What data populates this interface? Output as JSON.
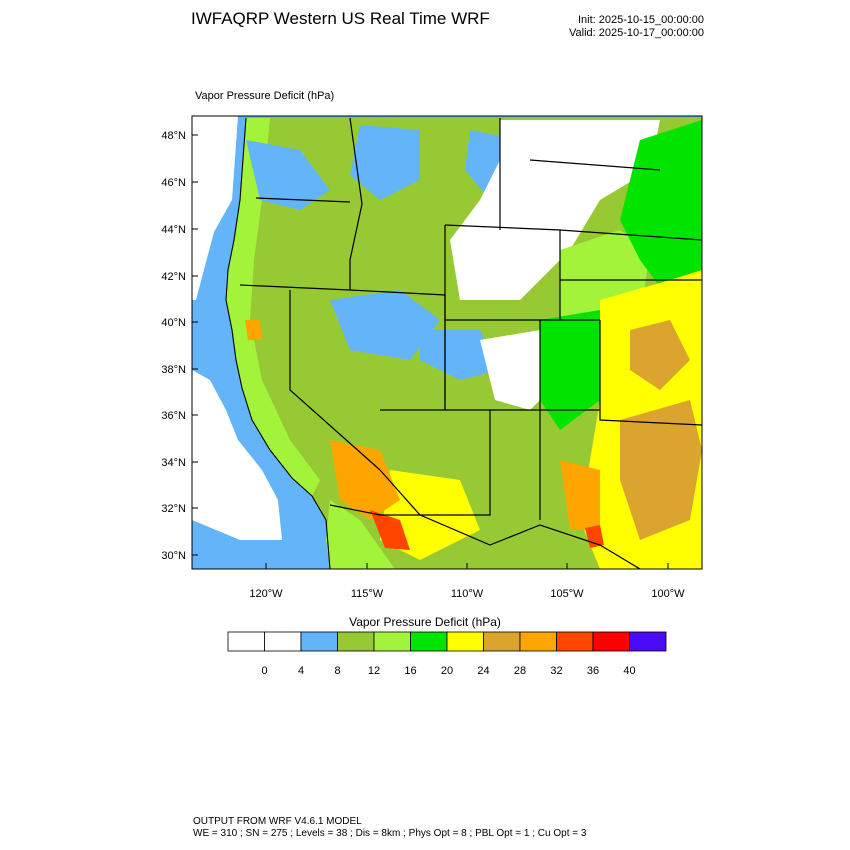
{
  "header": {
    "title": "IWFAQRP Western US Real Time WRF",
    "init": "Init: 2025-10-15_00:00:00",
    "valid": "Valid: 2025-10-17_00:00:00"
  },
  "field_label": "Vapor Pressure Deficit   (hPa)",
  "axes": {
    "lat_ticks": [
      "48°N",
      "46°N",
      "44°N",
      "42°N",
      "40°N",
      "38°N",
      "36°N",
      "34°N",
      "32°N",
      "30°N"
    ],
    "lon_ticks": [
      "120°W",
      "115°W",
      "110°W",
      "105°W",
      "100°W"
    ]
  },
  "colorbar": {
    "title": "Vapor Pressure Deficit  (hPa)",
    "labels": [
      "0",
      "4",
      "8",
      "12",
      "16",
      "20",
      "24",
      "28",
      "32",
      "36",
      "40"
    ],
    "colors": [
      "#ffffff",
      "#ffffff",
      "#63b4f9",
      "#97c934",
      "#a3f33a",
      "#00e400",
      "#ffff00",
      "#dba42e",
      "#ffa500",
      "#ff4500",
      "#ff0000",
      "#4b0bf7"
    ]
  },
  "footer": {
    "line1": "OUTPUT FROM WRF V4.6.1 MODEL",
    "line2": "WE = 310 ; SN = 275 ; Levels = 38 ; Dis = 8km ; Phys Opt = 8 ; PBL Opt = 1 ; Cu Opt = 3"
  },
  "legend_colors": {
    "ocean": "#63b4f9",
    "borders": "#000000"
  }
}
